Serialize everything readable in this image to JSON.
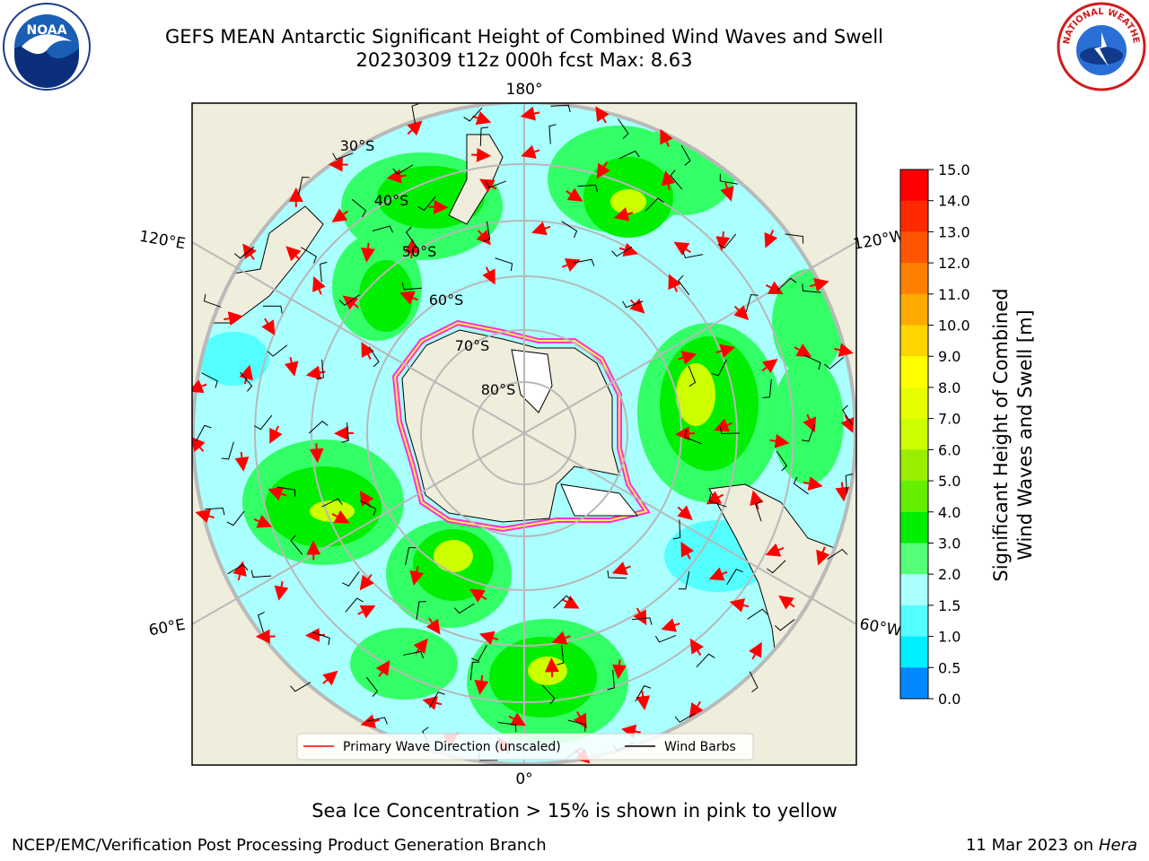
{
  "header": {
    "title_line1": "GEFS MEAN Antarctic Significant Height of Combined Wind Waves and Swell",
    "title_line2": "20230309 t12z 000h fcst   Max: 8.63"
  },
  "logos": {
    "left": "NOAA",
    "right": "NATIONAL WEATHER SERVICE"
  },
  "map": {
    "projection": "south-polar-stereographic",
    "lon_labels": {
      "top": "180°",
      "bottom": "0°",
      "upper_left": "120°E",
      "lower_left": "60°E",
      "upper_right": "120°W",
      "lower_right": "60°W"
    },
    "lat_labels": [
      "30°S",
      "40°S",
      "50°S",
      "60°S",
      "70°S",
      "80°S"
    ],
    "colors": {
      "land": "#efeedc",
      "ocean_low": "#aaffff",
      "ocean_mid": "#33ff66",
      "ocean_high": "#00ee00",
      "peak": "#ccff00",
      "ice_edge": "#ff33cc",
      "grid": "#b8b8b8"
    }
  },
  "legend": {
    "wave_label": "Primary Wave Direction (unscaled)",
    "barb_label": "Wind Barbs"
  },
  "colorbar": {
    "label_line1": "Significant Height of Combined",
    "label_line2": "Wind Waves and Swell [m]",
    "ticks": [
      "15.0",
      "14.0",
      "13.0",
      "12.0",
      "11.0",
      "10.0",
      "9.0",
      "8.0",
      "7.0",
      "6.0",
      "5.0",
      "4.0",
      "3.0",
      "2.0",
      "1.5",
      "1.0",
      "0.5",
      "0.0"
    ],
    "colors": [
      "#ff0000",
      "#ff2a00",
      "#ff5500",
      "#ff8000",
      "#ffaa00",
      "#ffd500",
      "#ffff00",
      "#e6ff00",
      "#ccff00",
      "#99ee00",
      "#66ee00",
      "#00ee00",
      "#55ff77",
      "#aaffff",
      "#55ffff",
      "#00eeff",
      "#0088ff",
      "#0000ff"
    ]
  },
  "footer": {
    "ice_note": "Sea Ice Concentration > 15% is shown in pink to yellow",
    "credit": "NCEP/EMC/Verification Post Processing Product Generation Branch",
    "date": "11 Mar 2023 on",
    "host": "Hera"
  }
}
